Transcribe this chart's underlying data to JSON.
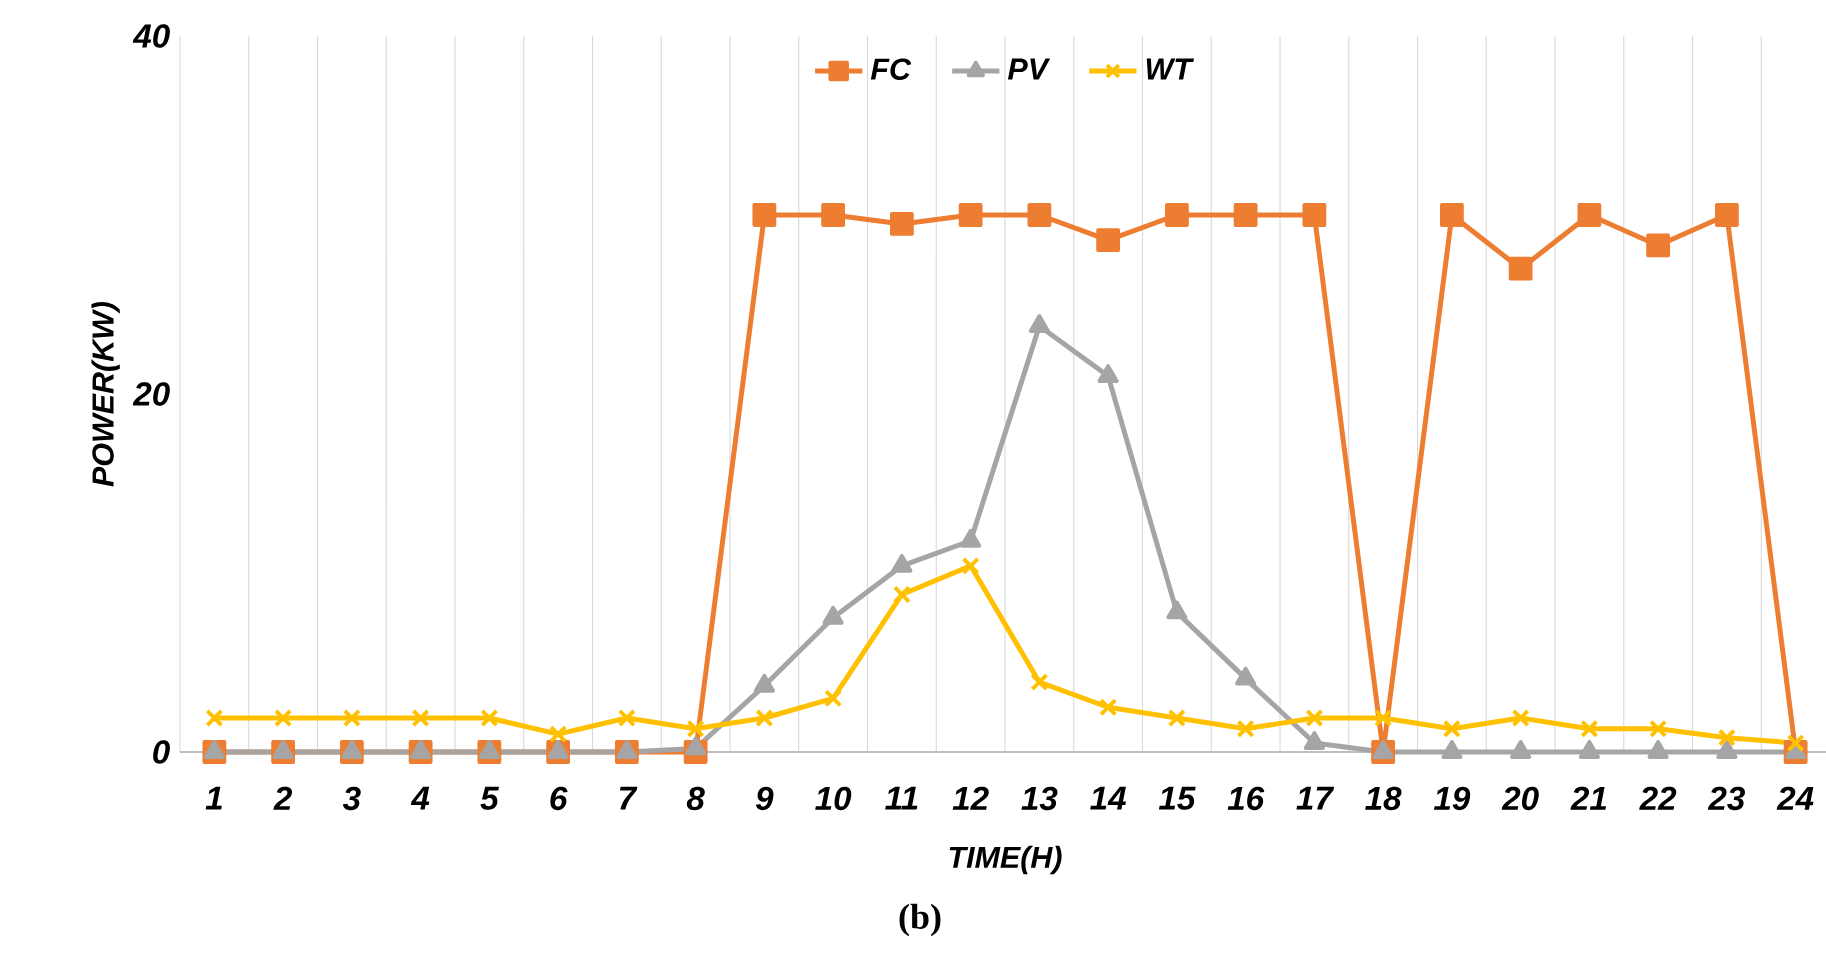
{
  "chart_data": {
    "type": "line",
    "xlabel": "TIME(H)",
    "ylabel": "POWER(KW)",
    "categories": [
      "1",
      "2",
      "3",
      "4",
      "5",
      "6",
      "7",
      "8",
      "9",
      "10",
      "11",
      "12",
      "13",
      "14",
      "15",
      "16",
      "17",
      "18",
      "19",
      "20",
      "21",
      "22",
      "23",
      "24"
    ],
    "series": [
      {
        "name": "FC",
        "color": "#ed7d31",
        "marker": "square",
        "values": [
          0,
          0,
          0,
          0,
          0,
          0,
          0,
          0,
          30,
          30,
          29.5,
          30,
          30,
          28.6,
          30,
          30,
          30,
          0,
          30,
          27,
          30,
          28.3,
          30,
          0
        ]
      },
      {
        "name": "PV",
        "color": "#a5a5a5",
        "marker": "triangle",
        "values": [
          0,
          0,
          0,
          0,
          0,
          0,
          0,
          0.2,
          3.7,
          7.5,
          10.4,
          11.8,
          23.8,
          21,
          7.8,
          4.1,
          0.5,
          0,
          0,
          0,
          0,
          0,
          0,
          0
        ]
      },
      {
        "name": "WT",
        "color": "#ffc000",
        "marker": "cross",
        "values": [
          1.9,
          1.9,
          1.9,
          1.9,
          1.9,
          1,
          1.9,
          1.3,
          1.9,
          3,
          8.8,
          10.4,
          3.9,
          2.5,
          1.9,
          1.3,
          1.9,
          1.9,
          1.3,
          1.9,
          1.3,
          1.3,
          0.8,
          0.5
        ]
      }
    ],
    "ylim": [
      0,
      40
    ],
    "yticks": [
      0,
      20,
      40
    ],
    "grid": "x",
    "legend": "top",
    "line_style": "solid",
    "annotations": [
      "(b)"
    ]
  }
}
